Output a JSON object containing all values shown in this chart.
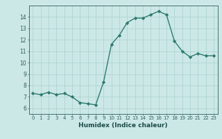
{
  "x": [
    0,
    1,
    2,
    3,
    4,
    5,
    6,
    7,
    8,
    9,
    10,
    11,
    12,
    13,
    14,
    15,
    16,
    17,
    18,
    19,
    20,
    21,
    22,
    23
  ],
  "y": [
    7.3,
    7.2,
    7.4,
    7.2,
    7.3,
    7.0,
    6.5,
    6.4,
    6.3,
    8.3,
    11.6,
    12.4,
    13.5,
    13.9,
    13.9,
    14.2,
    14.5,
    14.2,
    11.9,
    11.0,
    10.5,
    10.8,
    10.6,
    10.6
  ],
  "xlim": [
    -0.5,
    23.5
  ],
  "ylim": [
    5.5,
    15.0
  ],
  "yticks": [
    6,
    7,
    8,
    9,
    10,
    11,
    12,
    13,
    14
  ],
  "xticks": [
    0,
    1,
    2,
    3,
    4,
    5,
    6,
    7,
    8,
    9,
    10,
    11,
    12,
    13,
    14,
    15,
    16,
    17,
    18,
    19,
    20,
    21,
    22,
    23
  ],
  "xlabel": "Humidex (Indice chaleur)",
  "line_color": "#2d7a6e",
  "marker": "D",
  "marker_size": 2.2,
  "bg_color": "#cce8e6",
  "grid_color": "#aed4d1",
  "tick_color": "#2d5f5a",
  "label_color": "#1a4a45"
}
